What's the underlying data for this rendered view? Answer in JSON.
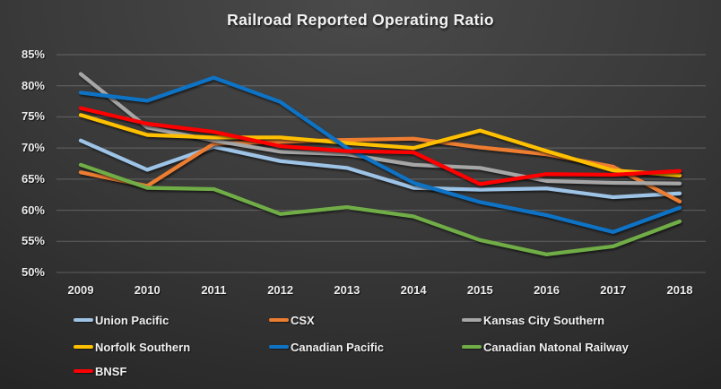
{
  "title": "Railroad Reported Operating Ratio",
  "theme": {
    "text_color": "#ececec",
    "gridline_color": "rgba(255,255,255,0.22)",
    "background_top": "#4a4a4a",
    "background_bottom": "#1a1a1a"
  },
  "chart_data": {
    "type": "line",
    "title": "Railroad Reported Operating Ratio",
    "xlabel": "",
    "ylabel": "",
    "x": [
      "2009",
      "2010",
      "2011",
      "2012",
      "2013",
      "2014",
      "2015",
      "2016",
      "2017",
      "2018"
    ],
    "y_axis": {
      "min": 50,
      "max": 85,
      "step": 5,
      "unit": "%",
      "tick_labels_top_to_bottom": [
        "85%",
        "80%",
        "75%",
        "70%",
        "65%",
        "60%",
        "55%",
        "50%"
      ]
    },
    "grid": true,
    "legend_position": "bottom",
    "series": [
      {
        "name": "Union Pacific",
        "color": "#9DC3E6",
        "values": [
          71.2,
          66.5,
          70.2,
          67.9,
          66.8,
          63.6,
          63.3,
          63.5,
          62.1,
          62.7
        ]
      },
      {
        "name": "CSX",
        "color": "#ED7D31",
        "values": [
          66.1,
          63.9,
          70.7,
          71.0,
          71.3,
          71.5,
          70.1,
          69.0,
          67.0,
          61.4
        ]
      },
      {
        "name": "Kansas City Southern",
        "color": "#A6A6A6",
        "values": [
          81.9,
          73.3,
          71.2,
          69.4,
          69.0,
          67.3,
          66.8,
          64.7,
          64.4,
          64.3
        ]
      },
      {
        "name": "Norfolk Southern",
        "color": "#FFC000",
        "values": [
          75.3,
          72.1,
          71.7,
          71.7,
          70.8,
          70.0,
          72.8,
          69.5,
          66.4,
          65.6
        ]
      },
      {
        "name": "Canadian Pacific",
        "color": "#0E73C5",
        "values": [
          78.9,
          77.6,
          81.3,
          77.4,
          70.0,
          64.4,
          61.3,
          59.2,
          56.5,
          60.4
        ]
      },
      {
        "name": "Canadian Natonal Railway",
        "color": "#70AD47",
        "values": [
          67.3,
          63.6,
          63.4,
          59.4,
          60.5,
          59.0,
          55.2,
          52.9,
          54.2,
          58.2
        ]
      },
      {
        "name": "BNSF",
        "color": "#FF0000",
        "values": [
          76.4,
          73.9,
          72.6,
          70.3,
          69.5,
          69.3,
          64.2,
          65.8,
          65.7,
          66.3
        ]
      }
    ]
  }
}
